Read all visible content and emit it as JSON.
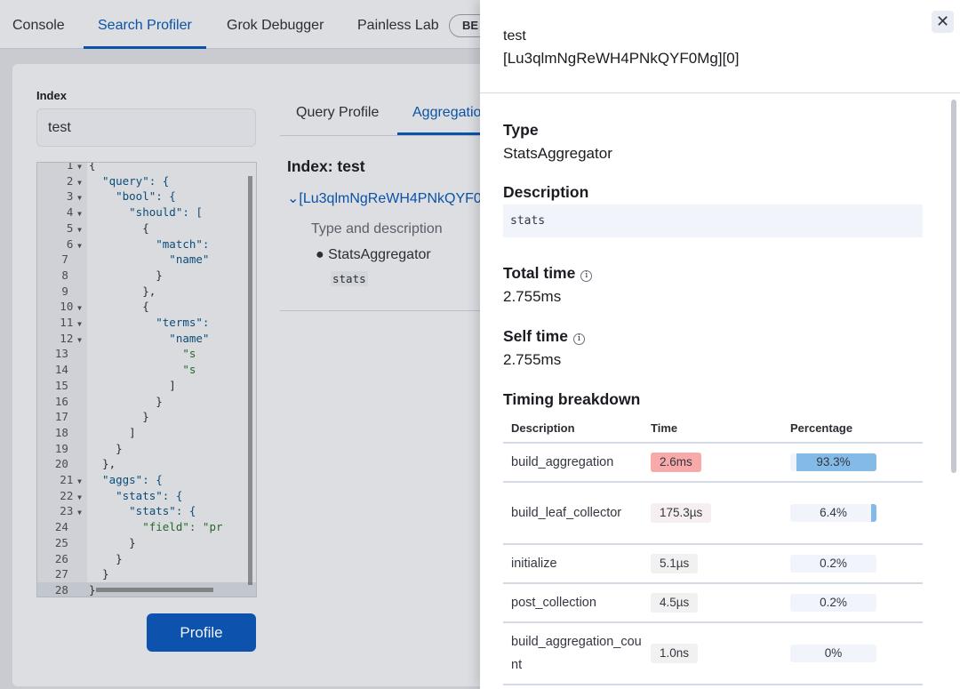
{
  "nav": {
    "tabs": [
      "Console",
      "Search Profiler",
      "Grok Debugger",
      "Painless Lab"
    ],
    "active": 1,
    "beta": "BE"
  },
  "left": {
    "index_label": "Index",
    "index_value": "test",
    "profile_button": "Profile"
  },
  "editor": {
    "lines": [
      [
        "1",
        "{"
      ],
      [
        "2",
        "  \"query\": {"
      ],
      [
        "3",
        "    \"bool\": {"
      ],
      [
        "4",
        "      \"should\": ["
      ],
      [
        "5",
        "        {"
      ],
      [
        "6",
        "          \"match\":"
      ],
      [
        "7",
        "            \"name\""
      ],
      [
        "8",
        "          }"
      ],
      [
        "9",
        "        },"
      ],
      [
        "10",
        "        {"
      ],
      [
        "11",
        "          \"terms\":"
      ],
      [
        "12",
        "            \"name\""
      ],
      [
        "13",
        "              \"s"
      ],
      [
        "14",
        "              \"s"
      ],
      [
        "15",
        "            ]"
      ],
      [
        "16",
        "          }"
      ],
      [
        "17",
        "        }"
      ],
      [
        "18",
        "      ]"
      ],
      [
        "19",
        "    }"
      ],
      [
        "20",
        "  },"
      ],
      [
        "21",
        "  \"aggs\": {"
      ],
      [
        "22",
        "    \"stats\": {"
      ],
      [
        "23",
        "      \"stats\": {"
      ],
      [
        "24",
        "        \"field\": \"pr"
      ],
      [
        "25",
        "      }"
      ],
      [
        "26",
        "    }"
      ],
      [
        "27",
        "  }"
      ],
      [
        "28",
        "}"
      ]
    ],
    "foldable": [
      "1",
      "2",
      "3",
      "4",
      "5",
      "6",
      "10",
      "11",
      "12",
      "21",
      "22",
      "23"
    ]
  },
  "results": {
    "tabs": [
      "Query Profile",
      "Aggregatio"
    ],
    "index_title": "Index: test",
    "shard_link": "[Lu3qlmNgReWH4PNkQYF0",
    "type_desc_label": "Type and description",
    "type": "StatsAggregator",
    "desc": "stats"
  },
  "flyout": {
    "title_line1": "test",
    "title_line2": "[Lu3qlmNgReWH4PNkQYF0Mg][0]",
    "close_icon": "close-icon",
    "type_label": "Type",
    "type_value": "StatsAggregator",
    "desc_label": "Description",
    "desc_value": "stats",
    "total_label": "Total time",
    "total_value": "2.755ms",
    "self_label": "Self time",
    "self_value": "2.755ms",
    "breakdown_label": "Timing breakdown",
    "columns": [
      "Description",
      "Time",
      "Percentage"
    ],
    "rows": [
      {
        "desc": "build_aggregation",
        "time": "2.6ms",
        "pct": "93.3%",
        "pct_value": 93.3,
        "color": "#f8a9a9"
      },
      {
        "desc": "build_leaf_collector",
        "time": "175.3µs",
        "pct": "6.4%",
        "pct_value": 6.4,
        "color": "#f5efef"
      },
      {
        "desc": "initialize",
        "time": "5.1µs",
        "pct": "0.2%",
        "pct_value": 0.2,
        "color": "#f1f1f1"
      },
      {
        "desc": "post_collection",
        "time": "4.5µs",
        "pct": "0.2%",
        "pct_value": 0.2,
        "color": "#f1f1f1"
      },
      {
        "desc": "build_aggregation_count",
        "time": "1.0ns",
        "pct": "0%",
        "pct_value": 0,
        "color": "#f1f1f1"
      }
    ]
  }
}
